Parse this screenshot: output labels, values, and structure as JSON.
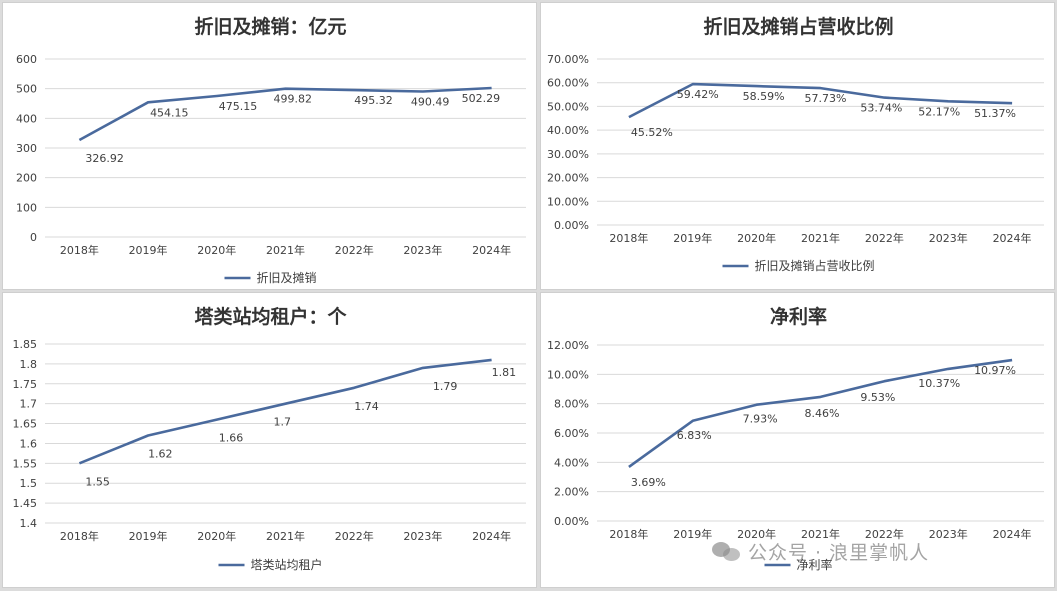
{
  "colors": {
    "line": "#4a6a9d",
    "grid": "#d9d9d9",
    "text": "#404040",
    "title": "#333333"
  },
  "watermark": {
    "text": "公众号 · 浪里掌帆人",
    "icon": "wechat-icon"
  },
  "chart_data": [
    {
      "type": "line",
      "title": "折旧及摊销：亿元",
      "categories": [
        "2018年",
        "2019年",
        "2020年",
        "2021年",
        "2022年",
        "2023年",
        "2024年"
      ],
      "series": [
        {
          "name": "折旧及摊销",
          "values": [
            326.92,
            454.15,
            475.15,
            499.82,
            495.32,
            490.49,
            502.29
          ]
        }
      ],
      "value_labels": [
        "326.92",
        "454.15",
        "475.15",
        "499.82",
        "495.32",
        "490.49",
        "502.29"
      ],
      "ylim": [
        0,
        600
      ],
      "yticks": [
        "0",
        "100",
        "200",
        "300",
        "400",
        "500",
        "600"
      ],
      "grid": true,
      "legend": "bottom"
    },
    {
      "type": "line",
      "title": "折旧及摊销占营收比例",
      "categories": [
        "2018年",
        "2019年",
        "2020年",
        "2021年",
        "2022年",
        "2023年",
        "2024年"
      ],
      "series": [
        {
          "name": "折旧及摊销占营收比例",
          "values": [
            45.52,
            59.42,
            58.59,
            57.73,
            53.74,
            52.17,
            51.37
          ]
        }
      ],
      "value_labels": [
        "45.52%",
        "59.42%",
        "58.59%",
        "57.73%",
        "53.74%",
        "52.17%",
        "51.37%"
      ],
      "ylim": [
        0,
        70
      ],
      "yticks": [
        "0.00%",
        "10.00%",
        "20.00%",
        "30.00%",
        "40.00%",
        "50.00%",
        "60.00%",
        "70.00%"
      ],
      "grid": true,
      "legend": "bottom"
    },
    {
      "type": "line",
      "title": "塔类站均租户：个",
      "categories": [
        "2018年",
        "2019年",
        "2020年",
        "2021年",
        "2022年",
        "2023年",
        "2024年"
      ],
      "series": [
        {
          "name": "塔类站均租户",
          "values": [
            1.55,
            1.62,
            1.66,
            1.7,
            1.74,
            1.79,
            1.81
          ]
        }
      ],
      "value_labels": [
        "1.55",
        "1.62",
        "1.66",
        "1.7",
        "1.74",
        "1.79",
        "1.81"
      ],
      "ylim": [
        1.4,
        1.85
      ],
      "yticks": [
        "1.4",
        "1.45",
        "1.5",
        "1.55",
        "1.6",
        "1.65",
        "1.7",
        "1.75",
        "1.8",
        "1.85"
      ],
      "grid": true,
      "legend": "bottom"
    },
    {
      "type": "line",
      "title": "净利率",
      "categories": [
        "2018年",
        "2019年",
        "2020年",
        "2021年",
        "2022年",
        "2023年",
        "2024年"
      ],
      "series": [
        {
          "name": "净利率",
          "values": [
            3.69,
            6.83,
            7.93,
            8.46,
            9.53,
            10.37,
            10.97
          ]
        }
      ],
      "value_labels": [
        "3.69%",
        "6.83%",
        "7.93%",
        "8.46%",
        "9.53%",
        "10.37%",
        "10.97%"
      ],
      "ylim": [
        0,
        12
      ],
      "yticks": [
        "0.00%",
        "2.00%",
        "4.00%",
        "6.00%",
        "8.00%",
        "10.00%",
        "12.00%"
      ],
      "grid": true,
      "legend": "bottom"
    }
  ]
}
